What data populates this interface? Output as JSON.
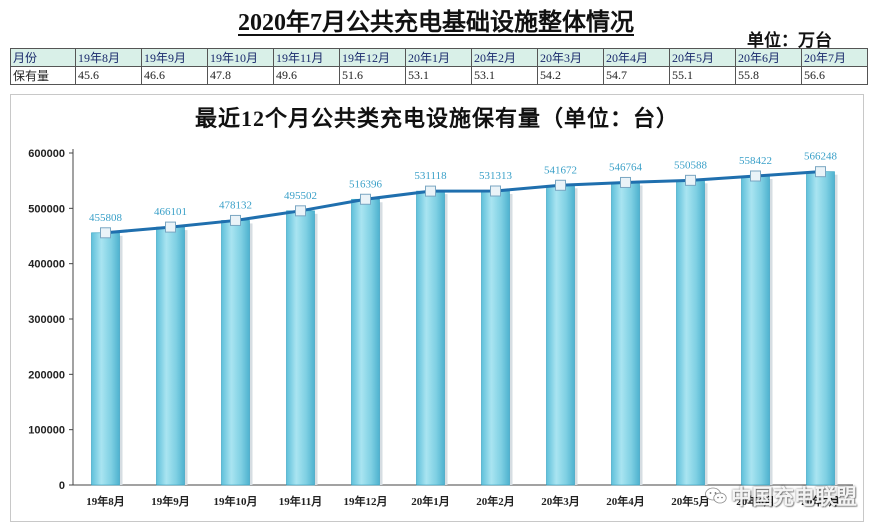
{
  "page": {
    "title": "2020年7月公共充电基础设施整体情况",
    "unit": "单位：万台"
  },
  "table": {
    "row_labels": [
      "月份",
      "保有量"
    ],
    "months": [
      "19年8月",
      "19年9月",
      "19年10月",
      "19年11月",
      "19年12月",
      "20年1月",
      "20年2月",
      "20年3月",
      "20年4月",
      "20年5月",
      "20年6月",
      "20年7月"
    ],
    "values": [
      "45.6",
      "46.6",
      "47.8",
      "49.6",
      "51.6",
      "53.1",
      "53.1",
      "54.2",
      "54.7",
      "55.1",
      "55.8",
      "56.6"
    ]
  },
  "chart_data": {
    "type": "bar",
    "title": "最近12个月公共类充电设施保有量（单位：台）",
    "categories": [
      "19年8月",
      "19年9月",
      "19年10月",
      "19年11月",
      "19年12月",
      "20年1月",
      "20年2月",
      "20年3月",
      "20年4月",
      "20年5月",
      "20年6月",
      "20年7月"
    ],
    "values": [
      455808,
      466101,
      478132,
      495502,
      516396,
      531118,
      531313,
      541672,
      546764,
      550588,
      558422,
      566248
    ],
    "overlay": "line-with-markers",
    "ylim": [
      0,
      600000
    ],
    "yticks": [
      0,
      100000,
      200000,
      300000,
      400000,
      500000,
      600000
    ],
    "xlabel": "",
    "ylabel": "",
    "grid": false,
    "colors": {
      "bar": "#7fd0e3",
      "bar_edge": "#2e9fc0",
      "line": "#1f6fae",
      "marker": "#eaf3f8",
      "label": "#3aa0c8"
    }
  },
  "watermark": {
    "icon": "wechat-icon",
    "text": "中国充电联盟"
  }
}
